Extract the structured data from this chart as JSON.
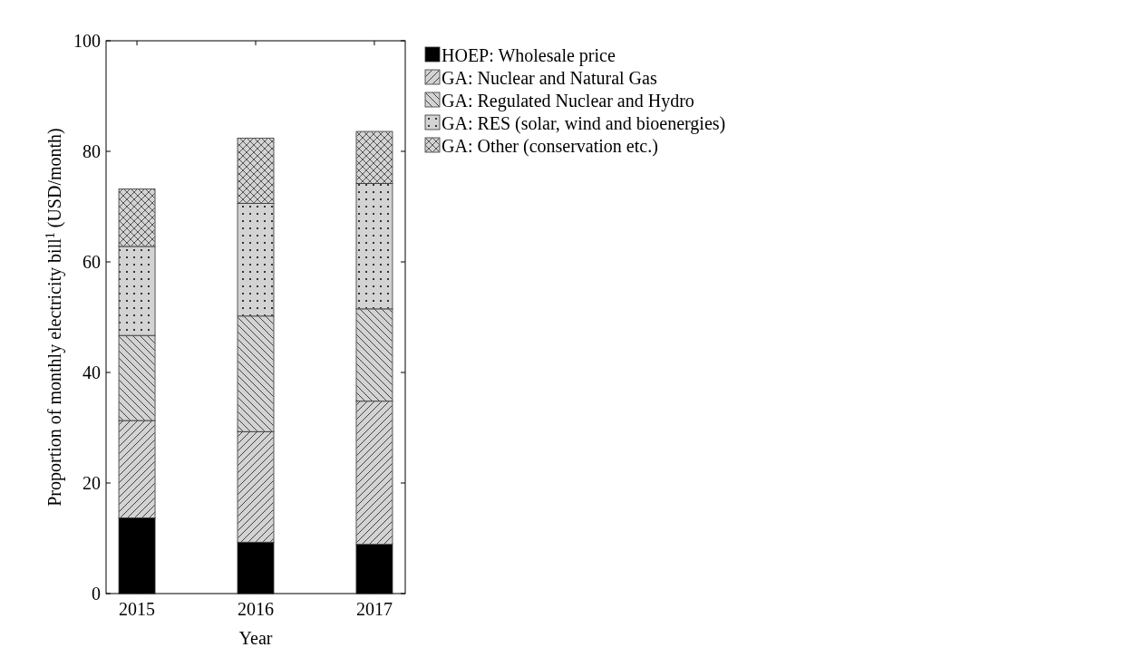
{
  "chart_data": {
    "type": "bar",
    "stacked": true,
    "xlabel": "Year",
    "ylabel": "Proportion of monthly electricity bill$^{1}$ (USD/month)",
    "categories": [
      "2015",
      "2016",
      "2017"
    ],
    "series": [
      {
        "name": "HOEP: Wholesale price",
        "color": "#000000",
        "values": [
          13.7,
          9.3,
          8.9
        ]
      },
      {
        "name": "GA: Nuclear and Natural Gas",
        "color": "#d3d3d3",
        "values": [
          17.6,
          20.0,
          25.9
        ]
      },
      {
        "name": "GA: Regulated Nuclear and Hydro",
        "color": "#d3d3d3",
        "values": [
          15.4,
          20.9,
          16.7
        ]
      },
      {
        "name": "GA: RES (solar, wind and bioenergies)",
        "color": "#d3d3d3",
        "values": [
          16.1,
          20.4,
          22.7
        ]
      },
      {
        "name": "GA: Other (conservation etc.)",
        "color": "#d3d3d3",
        "values": [
          10.4,
          11.8,
          9.4
        ]
      }
    ],
    "ylim": [
      0,
      100
    ],
    "yticks": [
      0,
      20,
      40,
      60,
      80,
      100
    ],
    "legend": "right",
    "grid": false
  }
}
